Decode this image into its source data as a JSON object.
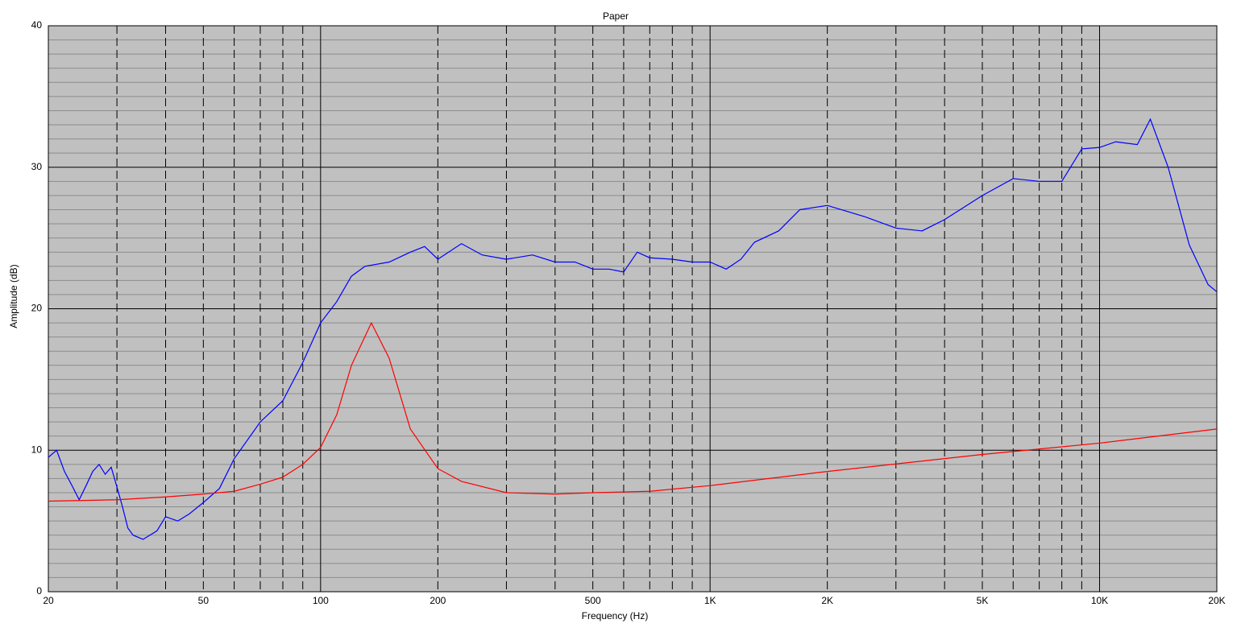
{
  "chart_data": {
    "type": "line",
    "title": "Paper",
    "xlabel": "Frequency (Hz)",
    "ylabel": "Amplitude (dB)",
    "xscale": "log",
    "xlim": [
      20,
      20000
    ],
    "ylim": [
      0,
      40
    ],
    "xticks": [
      20,
      50,
      100,
      200,
      500,
      {
        "value": 1000,
        "label": "1K"
      },
      {
        "value": 2000,
        "label": "2K"
      },
      {
        "value": 5000,
        "label": "5K"
      },
      {
        "value": 10000,
        "label": "10K"
      },
      {
        "value": 20000,
        "label": "20K"
      }
    ],
    "xminor": [
      30,
      40,
      60,
      70,
      80,
      90,
      300,
      400,
      600,
      700,
      800,
      900,
      3000,
      4000,
      6000,
      7000,
      8000,
      9000
    ],
    "yticks": [
      0,
      10,
      20,
      30,
      40
    ],
    "yminor": [
      1,
      2,
      3,
      4,
      5,
      6,
      7,
      8,
      9,
      11,
      12,
      13,
      14,
      15,
      16,
      17,
      18,
      19,
      21,
      22,
      23,
      24,
      25,
      26,
      27,
      28,
      29,
      31,
      32,
      33,
      34,
      35,
      36,
      37,
      38,
      39
    ],
    "grid": true,
    "background": "#c0c0c0",
    "series": [
      {
        "color": "#0000ff",
        "x": [
          20,
          21,
          22,
          23,
          24,
          25,
          26,
          27,
          28,
          29,
          30,
          31,
          32,
          33,
          35,
          38,
          40,
          43,
          46,
          50,
          55,
          60,
          70,
          80,
          90,
          100,
          110,
          120,
          130,
          150,
          170,
          185,
          200,
          230,
          260,
          300,
          350,
          400,
          450,
          500,
          550,
          600,
          650,
          700,
          800,
          900,
          1000,
          1100,
          1200,
          1300,
          1500,
          1700,
          2000,
          2500,
          3000,
          3500,
          4000,
          5000,
          6000,
          7000,
          8000,
          9000,
          10000,
          11000,
          12500,
          13500,
          15000,
          17000,
          19000,
          20000
        ],
        "values": [
          9.5,
          10,
          8.5,
          7.5,
          6.5,
          7.5,
          8.5,
          9,
          8.3,
          8.8,
          7.4,
          6,
          4.5,
          4,
          3.7,
          4.3,
          5.3,
          5,
          5.5,
          6.3,
          7.3,
          9.4,
          12,
          13.5,
          16.2,
          19,
          20.5,
          22.3,
          23,
          23.3,
          24,
          24.4,
          23.5,
          24.6,
          23.8,
          23.5,
          23.8,
          23.3,
          23.3,
          22.8,
          22.8,
          22.6,
          24,
          23.6,
          23.5,
          23.3,
          23.3,
          22.8,
          23.5,
          24.7,
          25.5,
          27,
          27.3,
          26.5,
          25.7,
          25.5,
          26.3,
          28,
          29.2,
          29,
          29,
          31.3,
          31.4,
          31.8,
          31.6,
          33.4,
          30,
          24.5,
          21.7,
          21.2
        ]
      },
      {
        "color": "#ff0000",
        "x": [
          20,
          30,
          40,
          50,
          60,
          70,
          80,
          90,
          100,
          110,
          120,
          135,
          150,
          170,
          200,
          230,
          300,
          400,
          500,
          700,
          1000,
          2000,
          5000,
          10000,
          20000
        ],
        "values": [
          6.4,
          6.5,
          6.7,
          6.9,
          7.1,
          7.6,
          8.1,
          9,
          10.2,
          12.5,
          16,
          19,
          16.5,
          11.5,
          8.7,
          7.8,
          7,
          6.9,
          7,
          7.1,
          7.5,
          8.5,
          9.7,
          10.5,
          11.5
        ]
      }
    ]
  }
}
